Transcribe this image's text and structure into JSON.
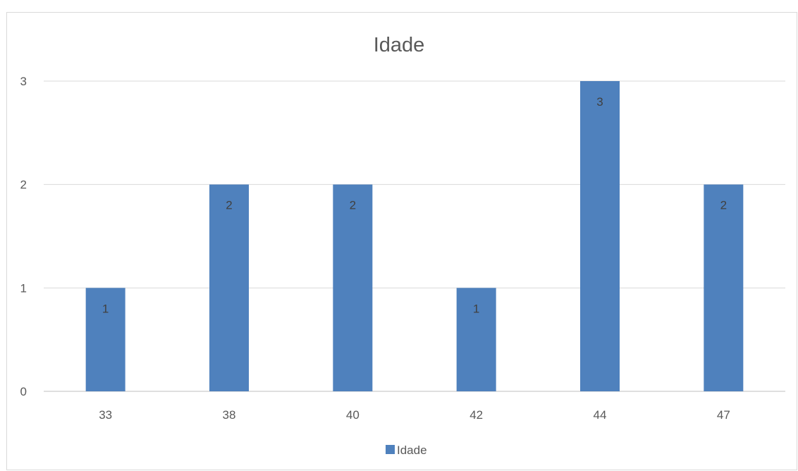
{
  "chart_data": {
    "type": "bar",
    "title": "Idade",
    "xlabel": "",
    "ylabel": "",
    "categories": [
      "33",
      "38",
      "40",
      "42",
      "44",
      "47"
    ],
    "series": [
      {
        "name": "Idade",
        "values": [
          1,
          2,
          2,
          1,
          3,
          2
        ],
        "color": "#4f81bd"
      }
    ],
    "ylim": [
      0,
      3
    ],
    "yticks": [
      0,
      1,
      2,
      3
    ],
    "grid": true,
    "legend": "bottom",
    "data_labels": true
  }
}
